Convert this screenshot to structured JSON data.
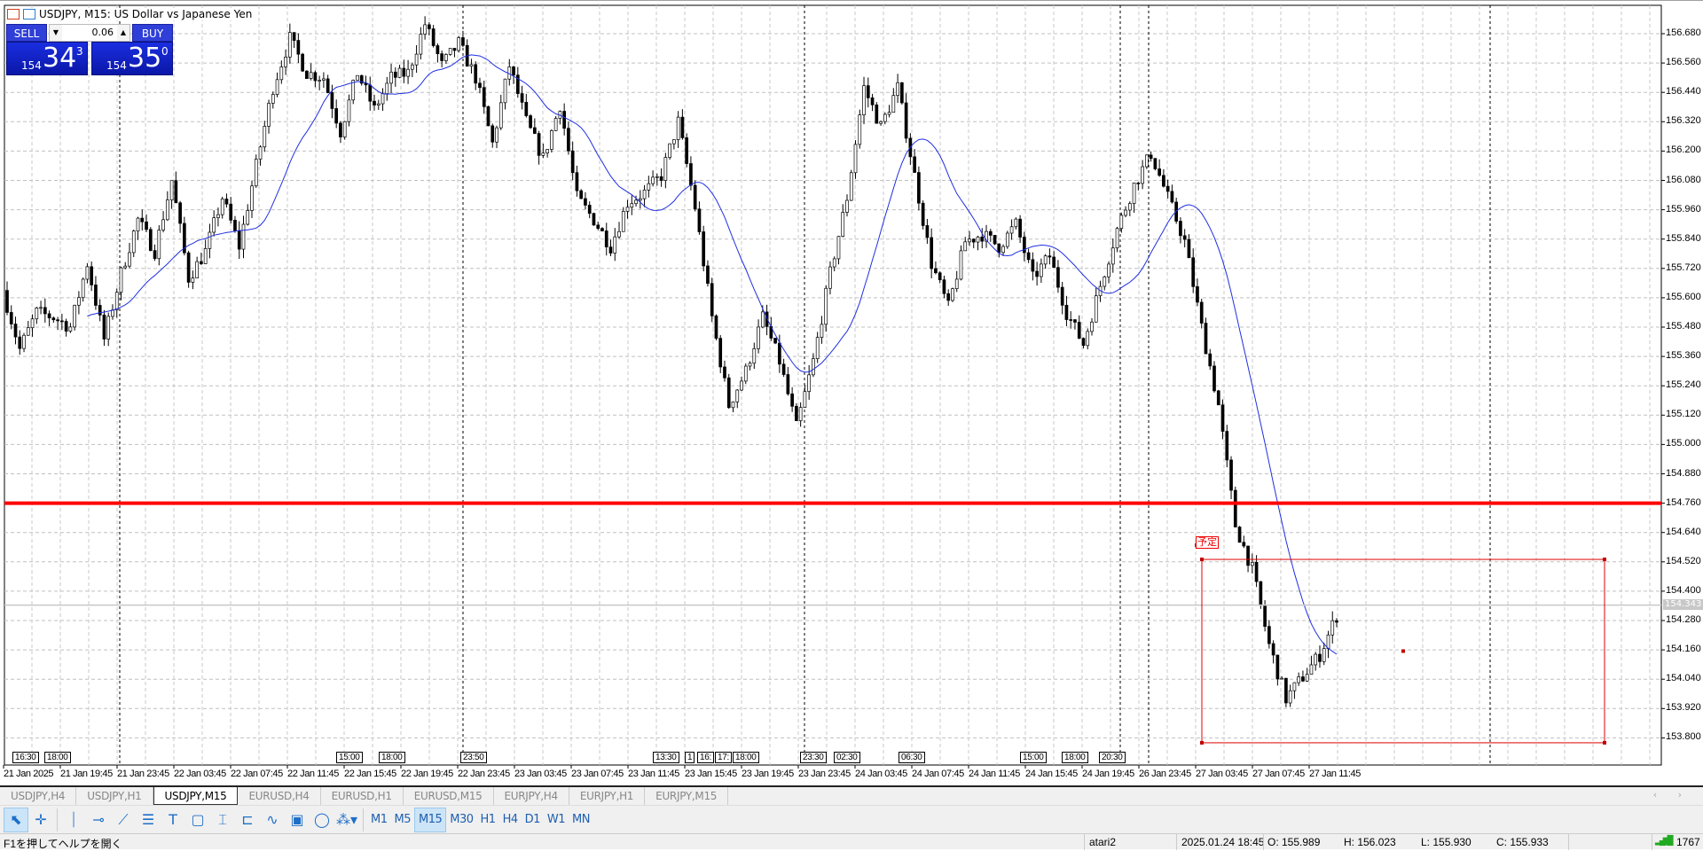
{
  "window": {
    "title": "USDJPY, M15:  US Dollar vs Japanese Yen"
  },
  "trade_panel": {
    "sell_label": "SELL",
    "buy_label": "BUY",
    "lot": "0.06",
    "sell_price": {
      "small": "154",
      "big": "34",
      "sup": "3"
    },
    "buy_price": {
      "small": "154",
      "big": "35",
      "sup": "0"
    }
  },
  "chart_data": {
    "type": "candlestick",
    "symbol": "USDJPY",
    "timeframe": "M15",
    "y_ticks": [
      "156.680",
      "156.560",
      "156.440",
      "156.320",
      "156.200",
      "156.080",
      "155.960",
      "155.840",
      "155.720",
      "155.600",
      "155.480",
      "155.360",
      "155.240",
      "155.120",
      "155.000",
      "154.880",
      "154.760",
      "154.640",
      "154.520",
      "154.400",
      "154.280",
      "154.160",
      "154.040",
      "153.920",
      "153.800"
    ],
    "ylim": [
      153.74,
      156.78
    ],
    "x_ticks": [
      "21 Jan 2025",
      "21 Jan 19:45",
      "21 Jan 23:45",
      "22 Jan 03:45",
      "22 Jan 07:45",
      "22 Jan 11:45",
      "22 Jan 15:45",
      "22 Jan 19:45",
      "22 Jan 23:45",
      "23 Jan 03:45",
      "23 Jan 07:45",
      "23 Jan 11:45",
      "23 Jan 15:45",
      "23 Jan 19:45",
      "23 Jan 23:45",
      "24 Jan 03:45",
      "24 Jan 07:45",
      "24 Jan 11:45",
      "24 Jan 15:45",
      "24 Jan 19:45",
      "26 Jan 23:45",
      "27 Jan 03:45",
      "27 Jan 07:45",
      "27 Jan 11:45"
    ],
    "session_labels": [
      "16:30",
      "18:00",
      "15:00",
      "18:00",
      "23:50",
      "13:30",
      "1",
      "16:",
      "17:",
      "18:00",
      "23:30",
      "02:30",
      "06:30",
      "15:00",
      "18:00",
      "20:30"
    ],
    "hourly_closes": [
      155.63,
      155.39,
      155.54,
      155.52,
      155.48,
      155.74,
      155.43,
      155.7,
      155.92,
      155.79,
      156.08,
      155.68,
      155.79,
      156.01,
      155.81,
      156.14,
      156.46,
      156.66,
      156.52,
      156.5,
      156.28,
      156.52,
      156.37,
      156.5,
      156.52,
      156.72,
      156.55,
      156.64,
      156.5,
      156.23,
      156.55,
      156.32,
      156.17,
      156.39,
      156.01,
      155.92,
      155.81,
      155.99,
      156.03,
      156.1,
      156.32,
      155.97,
      155.52,
      155.16,
      155.3,
      155.52,
      155.34,
      155.07,
      155.34,
      155.7,
      156.01,
      156.46,
      156.3,
      156.46,
      156.1,
      155.74,
      155.56,
      155.83,
      155.86,
      155.81,
      155.9,
      155.68,
      155.77,
      155.54,
      155.41,
      155.65,
      155.88,
      156.06,
      156.19,
      156.01,
      155.83,
      155.48,
      155.16,
      154.67,
      154.49,
      154.18,
      153.96,
      154.05,
      154.14,
      154.3
    ],
    "moving_average_color": "#1f2fe0",
    "horizontal_line": {
      "price": 154.76,
      "color": "#ff0000"
    },
    "current_price": "154.343",
    "rectangle": {
      "label": "予定",
      "price_top": 154.53,
      "price_bottom": 153.78,
      "color": "#e00000"
    },
    "grid": true
  },
  "tabs": [
    {
      "label": "USDJPY,H4"
    },
    {
      "label": "USDJPY,H1"
    },
    {
      "label": "USDJPY,M15",
      "active": true
    },
    {
      "label": "EURUSD,H4"
    },
    {
      "label": "EURUSD,H1"
    },
    {
      "label": "EURUSD,M15"
    },
    {
      "label": "EURJPY,H4"
    },
    {
      "label": "EURJPY,H1"
    },
    {
      "label": "EURJPY,M15"
    }
  ],
  "tab_nav": "‹ ›",
  "toolbar": {
    "tools": [
      "cursor-icon",
      "crosshair-icon",
      "vertical-line-icon",
      "horizontal-line-icon",
      "trendline-icon",
      "channel-icon",
      "text-icon",
      "rectangle-icon",
      "text-label-icon",
      "price-label-icon",
      "oscillator-icon",
      "button-icon",
      "shapes-icon",
      "objects-icon"
    ],
    "timeframes": [
      "M1",
      "M5",
      "M15",
      "M30",
      "H1",
      "H4",
      "D1",
      "W1",
      "MN"
    ],
    "active_timeframe": "M15"
  },
  "status": {
    "help": "F1を押してヘルプを開く",
    "profile": "atari2",
    "datetime": "2025.01.24 18:45",
    "open": "O: 155.989",
    "high": "H: 156.023",
    "low": "L: 155.930",
    "close": "C: 155.933",
    "connection": "1767"
  }
}
